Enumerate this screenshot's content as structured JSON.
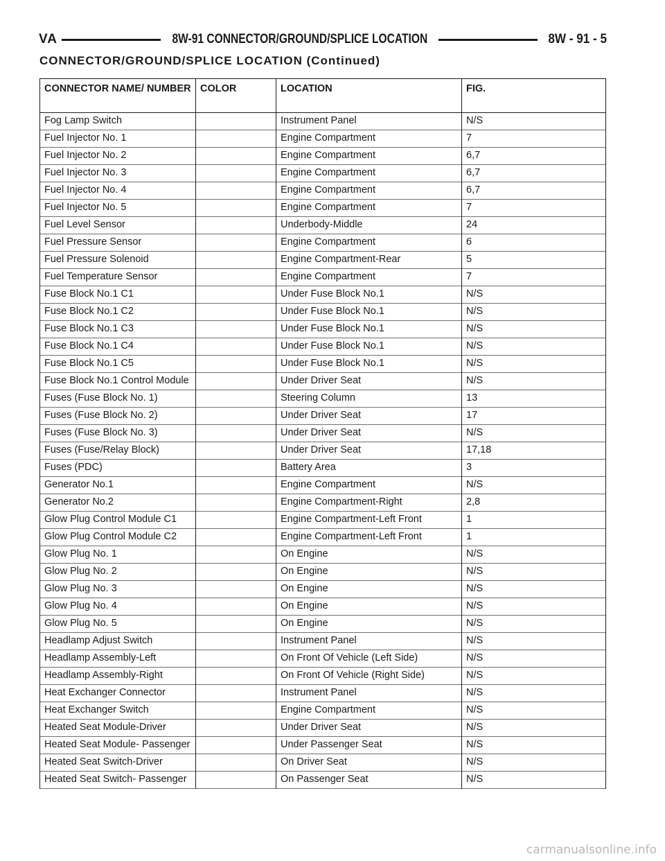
{
  "header": {
    "left": "VA",
    "center": "8W-91 CONNECTOR/GROUND/SPLICE LOCATION",
    "right": "8W - 91 - 5"
  },
  "section_title": "CONNECTOR/GROUND/SPLICE LOCATION (Continued)",
  "table": {
    "columns": [
      "CONNECTOR NAME/ NUMBER",
      "COLOR",
      "LOCATION",
      "FIG."
    ],
    "rows": [
      {
        "name": "Fog Lamp Switch",
        "color": "",
        "location": "Instrument Panel",
        "fig": "N/S"
      },
      {
        "name": "Fuel Injector No. 1",
        "color": "",
        "location": "Engine Compartment",
        "fig": "7"
      },
      {
        "name": "Fuel Injector No. 2",
        "color": "",
        "location": "Engine Compartment",
        "fig": "6,7"
      },
      {
        "name": "Fuel Injector No. 3",
        "color": "",
        "location": "Engine Compartment",
        "fig": "6,7"
      },
      {
        "name": "Fuel Injector No. 4",
        "color": "",
        "location": "Engine Compartment",
        "fig": "6,7"
      },
      {
        "name": "Fuel Injector No. 5",
        "color": "",
        "location": "Engine Compartment",
        "fig": "7"
      },
      {
        "name": "Fuel Level Sensor",
        "color": "",
        "location": "Underbody-Middle",
        "fig": "24"
      },
      {
        "name": "Fuel Pressure Sensor",
        "color": "",
        "location": "Engine Compartment",
        "fig": "6"
      },
      {
        "name": "Fuel Pressure Solenoid",
        "color": "",
        "location": "Engine Compartment-Rear",
        "fig": "5"
      },
      {
        "name": "Fuel Temperature Sensor",
        "color": "",
        "location": "Engine Compartment",
        "fig": "7"
      },
      {
        "name": "Fuse Block No.1 C1",
        "color": "",
        "location": "Under Fuse Block No.1",
        "fig": "N/S"
      },
      {
        "name": "Fuse Block No.1 C2",
        "color": "",
        "location": "Under Fuse Block No.1",
        "fig": "N/S"
      },
      {
        "name": "Fuse Block No.1 C3",
        "color": "",
        "location": "Under Fuse Block No.1",
        "fig": "N/S"
      },
      {
        "name": "Fuse Block No.1 C4",
        "color": "",
        "location": "Under Fuse Block No.1",
        "fig": "N/S"
      },
      {
        "name": "Fuse Block No.1 C5",
        "color": "",
        "location": "Under Fuse Block No.1",
        "fig": "N/S"
      },
      {
        "name": "Fuse Block No.1 Control Module",
        "color": "",
        "location": "Under Driver Seat",
        "fig": "N/S"
      },
      {
        "name": "Fuses (Fuse Block No. 1)",
        "color": "",
        "location": "Steering Column",
        "fig": "13"
      },
      {
        "name": "Fuses (Fuse Block No. 2)",
        "color": "",
        "location": "Under Driver Seat",
        "fig": "17"
      },
      {
        "name": "Fuses (Fuse Block No. 3)",
        "color": "",
        "location": "Under Driver Seat",
        "fig": "N/S"
      },
      {
        "name": "Fuses (Fuse/Relay Block)",
        "color": "",
        "location": "Under Driver Seat",
        "fig": "17,18"
      },
      {
        "name": "Fuses (PDC)",
        "color": "",
        "location": "Battery Area",
        "fig": "3"
      },
      {
        "name": "Generator No.1",
        "color": "",
        "location": "Engine Compartment",
        "fig": "N/S"
      },
      {
        "name": "Generator No.2",
        "color": "",
        "location": "Engine Compartment-Right",
        "fig": "2,8"
      },
      {
        "name": "Glow Plug Control Module C1",
        "color": "",
        "location": "Engine Compartment-Left Front",
        "fig": "1"
      },
      {
        "name": "Glow Plug Control Module C2",
        "color": "",
        "location": "Engine Compartment-Left Front",
        "fig": "1"
      },
      {
        "name": "Glow Plug No. 1",
        "color": "",
        "location": "On Engine",
        "fig": "N/S"
      },
      {
        "name": "Glow Plug No. 2",
        "color": "",
        "location": "On Engine",
        "fig": "N/S"
      },
      {
        "name": "Glow Plug No. 3",
        "color": "",
        "location": "On Engine",
        "fig": "N/S"
      },
      {
        "name": "Glow Plug No. 4",
        "color": "",
        "location": "On Engine",
        "fig": "N/S"
      },
      {
        "name": "Glow Plug No. 5",
        "color": "",
        "location": "On Engine",
        "fig": "N/S"
      },
      {
        "name": "Headlamp Adjust Switch",
        "color": "",
        "location": "Instrument Panel",
        "fig": "N/S"
      },
      {
        "name": "Headlamp Assembly-Left",
        "color": "",
        "location": "On Front Of Vehicle (Left Side)",
        "fig": "N/S"
      },
      {
        "name": "Headlamp Assembly-Right",
        "color": "",
        "location": "On Front Of Vehicle (Right Side)",
        "fig": "N/S"
      },
      {
        "name": "Heat Exchanger Connector",
        "color": "",
        "location": "Instrument Panel",
        "fig": "N/S"
      },
      {
        "name": "Heat Exchanger Switch",
        "color": "",
        "location": "Engine Compartment",
        "fig": "N/S"
      },
      {
        "name": "Heated Seat Module-Driver",
        "color": "",
        "location": "Under Driver Seat",
        "fig": "N/S"
      },
      {
        "name": "Heated Seat Module- Passenger",
        "color": "",
        "location": "Under Passenger Seat",
        "fig": "N/S"
      },
      {
        "name": "Heated Seat Switch-Driver",
        "color": "",
        "location": "On Driver Seat",
        "fig": "N/S"
      },
      {
        "name": "Heated Seat Switch- Passenger",
        "color": "",
        "location": "On Passenger Seat",
        "fig": "N/S"
      }
    ]
  },
  "watermark": "carmanualsonline.info"
}
